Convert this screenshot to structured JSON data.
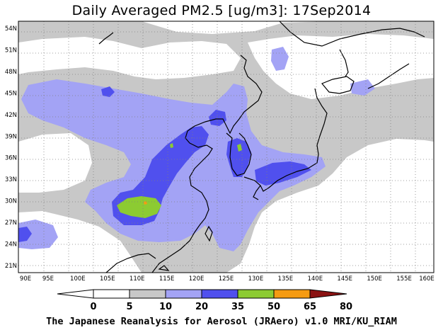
{
  "title": "Daily Averaged PM2.5 [ug/m3]: 17Sep2014",
  "footer": "The Japanese Reanalysis for Aerosol (JRAero) v1.0 MRI/KU_RIAM",
  "map": {
    "lon_ticks": [
      "90E",
      "95E",
      "100E",
      "105E",
      "110E",
      "115E",
      "120E",
      "125E",
      "130E",
      "135E",
      "140E",
      "145E",
      "150E",
      "155E",
      "160E"
    ],
    "lat_ticks": [
      "21N",
      "24N",
      "27N",
      "30N",
      "33N",
      "36N",
      "39N",
      "42N",
      "45N",
      "48N",
      "51N",
      "54N"
    ],
    "lon_range": [
      90,
      160
    ],
    "lat_range": [
      20,
      55
    ]
  },
  "legend": {
    "labels": [
      "0",
      "5",
      "10",
      "20",
      "35",
      "50",
      "65",
      "80"
    ],
    "colors": [
      "#ffffff",
      "#c8c8c8",
      "#a3a3f5",
      "#5050ee",
      "#8ccb32",
      "#f59b12",
      "#ee1a1a",
      "#8b1212"
    ]
  }
}
